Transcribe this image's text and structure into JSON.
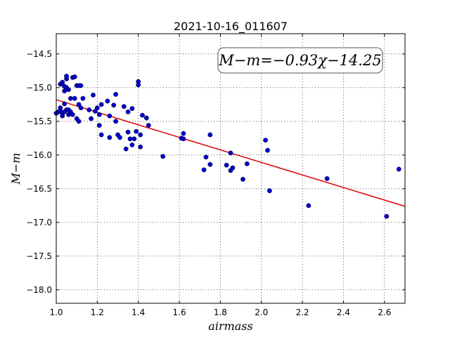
{
  "chart_data": {
    "type": "scatter",
    "title": "2021-10-16_011607",
    "xlabel": "airmass",
    "ylabel": "M−m",
    "xlim": [
      1.0,
      2.7
    ],
    "ylim": [
      -14.2,
      -18.2
    ],
    "y_inverted": true,
    "grid": true,
    "grid_style": "dotted",
    "x_ticks": [
      "1.0",
      "1.2",
      "1.4",
      "1.6",
      "1.8",
      "2.0",
      "2.2",
      "2.4",
      "2.6"
    ],
    "y_ticks": [
      "−14.5",
      "−15.0",
      "−15.5",
      "−16.0",
      "−16.5",
      "−17.0",
      "−17.5",
      "−18.0"
    ],
    "annotation": "M−m=−0.93χ−14.25",
    "fit": {
      "slope": -0.93,
      "intercept": -14.25,
      "color": "#dd0000"
    },
    "point_color": "#0000cc",
    "points": [
      [
        1.0,
        -15.38
      ],
      [
        1.01,
        -15.36
      ],
      [
        1.02,
        -15.3
      ],
      [
        1.02,
        -15.35
      ],
      [
        1.03,
        -15.42
      ],
      [
        1.03,
        -15.38
      ],
      [
        1.04,
        -15.36
      ],
      [
        1.05,
        -15.33
      ],
      [
        1.06,
        -15.4
      ],
      [
        1.02,
        -14.95
      ],
      [
        1.03,
        -14.92
      ],
      [
        1.04,
        -14.98
      ],
      [
        1.05,
        -14.87
      ],
      [
        1.05,
        -14.83
      ],
      [
        1.04,
        -15.05
      ],
      [
        1.05,
        -15.0
      ],
      [
        1.06,
        -15.03
      ],
      [
        1.07,
        -15.16
      ],
      [
        1.08,
        -14.85
      ],
      [
        1.09,
        -14.84
      ],
      [
        1.1,
        -14.97
      ],
      [
        1.11,
        -14.97
      ],
      [
        1.12,
        -14.97
      ],
      [
        1.04,
        -15.24
      ],
      [
        1.06,
        -15.33
      ],
      [
        1.07,
        -15.36
      ],
      [
        1.08,
        -15.4
      ],
      [
        1.09,
        -15.16
      ],
      [
        1.1,
        -15.46
      ],
      [
        1.11,
        -15.5
      ],
      [
        1.11,
        -15.25
      ],
      [
        1.12,
        -15.3
      ],
      [
        1.13,
        -15.16
      ],
      [
        1.16,
        -15.33
      ],
      [
        1.17,
        -15.46
      ],
      [
        1.18,
        -15.11
      ],
      [
        1.19,
        -15.35
      ],
      [
        1.2,
        -15.3
      ],
      [
        1.21,
        -15.4
      ],
      [
        1.21,
        -15.56
      ],
      [
        1.22,
        -15.25
      ],
      [
        1.22,
        -15.7
      ],
      [
        1.25,
        -15.2
      ],
      [
        1.26,
        -15.42
      ],
      [
        1.26,
        -15.74
      ],
      [
        1.28,
        -15.26
      ],
      [
        1.29,
        -15.1
      ],
      [
        1.29,
        -15.5
      ],
      [
        1.3,
        -15.7
      ],
      [
        1.31,
        -15.74
      ],
      [
        1.33,
        -15.28
      ],
      [
        1.34,
        -15.91
      ],
      [
        1.35,
        -15.66
      ],
      [
        1.35,
        -15.36
      ],
      [
        1.36,
        -15.76
      ],
      [
        1.37,
        -15.31
      ],
      [
        1.37,
        -15.85
      ],
      [
        1.38,
        -15.76
      ],
      [
        1.39,
        -15.65
      ],
      [
        1.4,
        -14.91
      ],
      [
        1.4,
        -14.96
      ],
      [
        1.41,
        -15.7
      ],
      [
        1.41,
        -15.88
      ],
      [
        1.42,
        -15.41
      ],
      [
        1.44,
        -15.45
      ],
      [
        1.45,
        -15.56
      ],
      [
        1.52,
        -16.02
      ],
      [
        1.61,
        -15.75
      ],
      [
        1.62,
        -15.68
      ],
      [
        1.62,
        -15.76
      ],
      [
        1.72,
        -16.22
      ],
      [
        1.73,
        -16.03
      ],
      [
        1.75,
        -15.7
      ],
      [
        1.75,
        -16.14
      ],
      [
        1.83,
        -16.15
      ],
      [
        1.85,
        -16.23
      ],
      [
        1.85,
        -15.97
      ],
      [
        1.86,
        -16.19
      ],
      [
        1.91,
        -16.36
      ],
      [
        1.93,
        -16.13
      ],
      [
        2.02,
        -15.78
      ],
      [
        2.03,
        -15.93
      ],
      [
        2.04,
        -16.53
      ],
      [
        2.23,
        -16.75
      ],
      [
        2.32,
        -16.35
      ],
      [
        2.61,
        -16.91
      ],
      [
        2.67,
        -16.21
      ]
    ]
  }
}
